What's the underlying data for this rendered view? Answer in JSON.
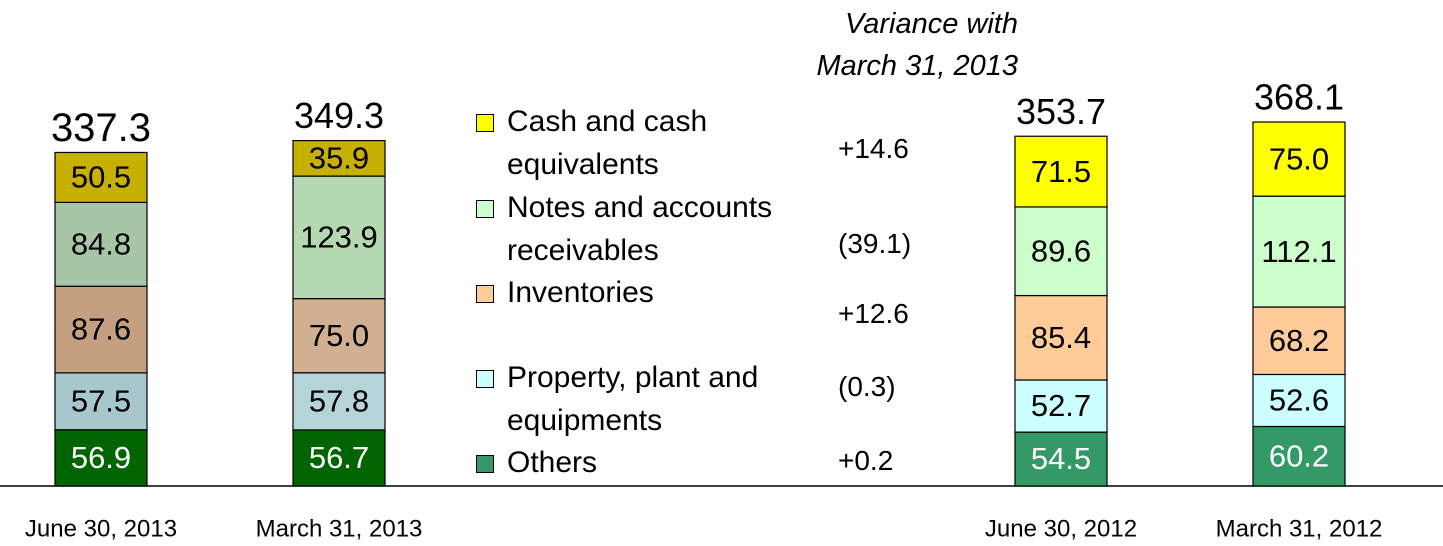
{
  "chart_data": {
    "type": "stacked-bar",
    "categories": [
      "June 30, 2013",
      "March 31, 2013",
      "June 30, 2012",
      "March 31, 2012"
    ],
    "totals": [
      337.3,
      349.3,
      353.7,
      368.1
    ],
    "series": [
      {
        "name": "Cash and cash equivalents",
        "colors": [
          "#c8b000",
          "#c8b000",
          "#ffff00",
          "#ffff00"
        ],
        "values": [
          50.5,
          35.9,
          71.5,
          75.0
        ],
        "value_labels": [
          "50.5",
          "35.9",
          "71.5",
          "75.0"
        ]
      },
      {
        "name": "Notes and accounts receivables",
        "colors": [
          "#a6c6a6",
          "#b4d8b0",
          "#ccffcc",
          "#ccffcc"
        ],
        "values": [
          84.8,
          123.9,
          89.6,
          112.1
        ],
        "value_labels": [
          "84.8",
          "123.9",
          "89.6",
          "112.1"
        ]
      },
      {
        "name": "Inventories",
        "colors": [
          "#c4a080",
          "#d0b090",
          "#ffcc99",
          "#ffcc99"
        ],
        "values": [
          87.6,
          75.0,
          85.4,
          68.2
        ],
        "value_labels": [
          "87.6",
          "75.0",
          "85.4",
          "68.2"
        ]
      },
      {
        "name": "Property, plant and equipments",
        "colors": [
          "#a6c8cc",
          "#b4d4d8",
          "#ccffff",
          "#ccffff"
        ],
        "values": [
          57.5,
          57.8,
          52.7,
          52.6
        ],
        "value_labels": [
          "57.5",
          "57.8",
          "52.7",
          "52.6"
        ]
      },
      {
        "name": "Others",
        "colors": [
          "#006400",
          "#006400",
          "#339966",
          "#339966"
        ],
        "values": [
          56.9,
          56.7,
          54.5,
          60.2
        ],
        "value_labels": [
          "56.9",
          "56.7",
          "54.5",
          "60.2"
        ]
      }
    ],
    "variance": {
      "title": [
        "Variance with",
        "March 31, 2013"
      ],
      "labels": [
        "+14.6",
        "(39.1)",
        "+12.6",
        "(0.3)",
        "+0.2"
      ]
    }
  }
}
